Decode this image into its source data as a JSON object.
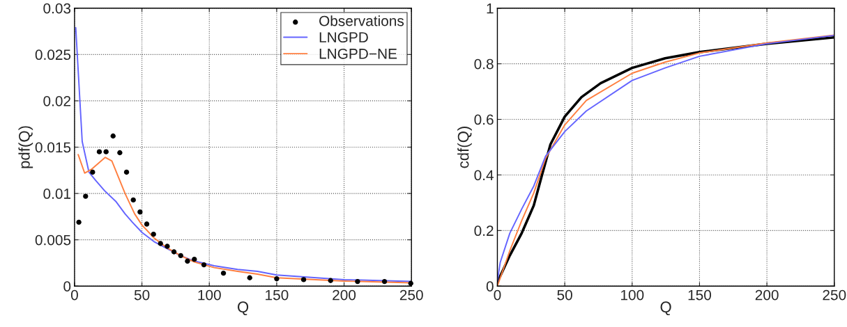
{
  "chart_data": [
    {
      "type": "line",
      "xlabel": "Q",
      "ylabel": "pdf(Q)",
      "xlim": [
        0,
        250
      ],
      "ylim": [
        0,
        0.03
      ],
      "xticks": [
        0,
        50,
        100,
        150,
        200,
        250
      ],
      "yticks": [
        0,
        0.005,
        0.01,
        0.015,
        0.02,
        0.025,
        0.03
      ],
      "grid": true,
      "legend": "top right",
      "series": [
        {
          "name": "Observations",
          "type": "scatter",
          "marker": "circle",
          "color": "#000000",
          "x": [
            3.2,
            8.2,
            13.4,
            18.4,
            23.4,
            28.6,
            33.6,
            38.6,
            43.6,
            48.6,
            53.6,
            58.6,
            63.8,
            68.8,
            73.8,
            78.8,
            83.8,
            88.9,
            96,
            110.5,
            130,
            150,
            170,
            190,
            210,
            230,
            249.5
          ],
          "values": [
            0.0069,
            0.0097,
            0.0123,
            0.0145,
            0.0145,
            0.0162,
            0.0144,
            0.0123,
            0.0093,
            0.008,
            0.0067,
            0.0056,
            0.0046,
            0.0043,
            0.0037,
            0.0033,
            0.0027,
            0.0029,
            0.0023,
            0.0014,
            0.0009,
            0.0008,
            0.0007,
            0.0006,
            0.0005,
            0.0005,
            0.0003
          ]
        },
        {
          "name": "LNGPD",
          "color": "#6464ff",
          "x": [
            0.9,
            5.7,
            10.7,
            15.7,
            22.3,
            30.9,
            37.5,
            42.9,
            50,
            59,
            68,
            78.6,
            89,
            103.6,
            121,
            135.7,
            150,
            200,
            249.5
          ],
          "values": [
            0.0279,
            0.0156,
            0.0123,
            0.0114,
            0.0103,
            0.0091,
            0.0078,
            0.0069,
            0.0058,
            0.0048,
            0.0041,
            0.0033,
            0.0027,
            0.0022,
            0.0018,
            0.0016,
            0.0012,
            0.0007,
            0.0005
          ]
        },
        {
          "name": "LNGPD−NE",
          "color": "#ff7f40",
          "x": [
            2.7,
            7.5,
            12.5,
            22.7,
            27.7,
            37.5,
            44.6,
            50,
            59,
            68,
            78.6,
            89,
            103.6,
            121,
            135.7,
            150,
            200,
            249.5
          ],
          "values": [
            0.0142,
            0.0122,
            0.0126,
            0.0139,
            0.0135,
            0.01,
            0.0078,
            0.0066,
            0.0052,
            0.0042,
            0.0033,
            0.0026,
            0.002,
            0.0016,
            0.0013,
            0.0009,
            0.00055,
            0.00035
          ]
        }
      ]
    },
    {
      "type": "line",
      "xlabel": "Q",
      "ylabel": "cdf(Q)",
      "xlim": [
        0,
        250
      ],
      "ylim": [
        0,
        1
      ],
      "xticks": [
        0,
        50,
        100,
        150,
        200,
        250
      ],
      "yticks": [
        0,
        0.2,
        0.4,
        0.6,
        0.8,
        1
      ],
      "grid": true,
      "series": [
        {
          "color": "#000000",
          "x": [
            0,
            9.2,
            18,
            27,
            32,
            39.4,
            50,
            62.4,
            76.6,
            100,
            124.5,
            150,
            200,
            250
          ],
          "values": [
            0.014,
            0.11,
            0.19,
            0.29,
            0.38,
            0.51,
            0.61,
            0.68,
            0.73,
            0.785,
            0.82,
            0.842,
            0.872,
            0.895
          ]
        },
        {
          "color": "#ff7f40",
          "x": [
            0,
            9.2,
            18,
            27,
            35.8,
            50,
            66,
            100,
            124.5,
            150,
            200,
            250
          ],
          "values": [
            0,
            0.127,
            0.235,
            0.335,
            0.46,
            0.58,
            0.668,
            0.766,
            0.806,
            0.839,
            0.875,
            0.903
          ]
        },
        {
          "color": "#6464ff",
          "x": [
            0,
            2.1,
            9.2,
            18,
            27,
            35.8,
            50,
            66,
            100,
            124.5,
            150,
            200,
            250
          ],
          "values": [
            0.018,
            0.085,
            0.19,
            0.277,
            0.36,
            0.468,
            0.556,
            0.63,
            0.74,
            0.785,
            0.827,
            0.872,
            0.902
          ]
        }
      ]
    }
  ]
}
